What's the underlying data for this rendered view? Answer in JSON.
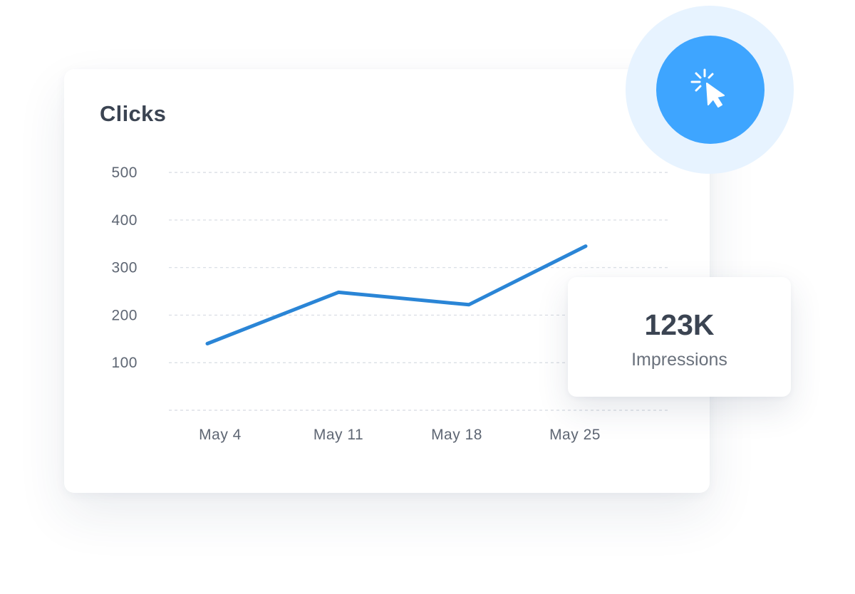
{
  "chart_card": {
    "title": "Clicks"
  },
  "chart_data": {
    "type": "line",
    "title": "Clicks",
    "xlabel": "",
    "ylabel": "",
    "x_tick_labels": [
      "May 4",
      "May 11",
      "May 18",
      "May 25"
    ],
    "y_ticks": [
      100,
      200,
      300,
      400,
      500
    ],
    "ylim": [
      0,
      500
    ],
    "grid": true,
    "legend": "none",
    "series": [
      {
        "color": "#2a85d6",
        "points": [
          {
            "x": 0.0,
            "y": 140
          },
          {
            "x": 1.0,
            "y": 248
          },
          {
            "x": 2.0,
            "y": 222
          },
          {
            "x": 3.0,
            "y": 345
          }
        ]
      }
    ]
  },
  "metric": {
    "value": "123K",
    "label": "Impressions"
  },
  "icons": {
    "action": "cursor-click-icon"
  },
  "colors": {
    "line": "#2a85d6",
    "button": "#3ea5ff",
    "halo": "#e7f3ff",
    "grid": "#d6dbe2",
    "text_dark": "#3b4452",
    "text_muted": "#5e6673"
  }
}
